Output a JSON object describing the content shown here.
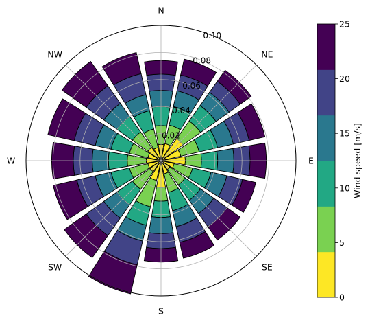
{
  "chart_data": {
    "type": "bar",
    "subtype": "windrose",
    "projection": "polar",
    "title": "",
    "direction_labels": [
      "N",
      "NE",
      "E",
      "SE",
      "S",
      "SW",
      "W",
      "NW"
    ],
    "directions_deg": [
      0,
      22.5,
      45,
      67.5,
      90,
      112.5,
      135,
      157.5,
      180,
      202.5,
      225,
      247.5,
      270,
      292.5,
      315,
      337.5
    ],
    "radial_ticks": [
      "0.02",
      "0.04",
      "0.06",
      "0.08",
      "0.10"
    ],
    "radial_tick_values": [
      0.02,
      0.04,
      0.06,
      0.08,
      0.1
    ],
    "rlim": [
      0,
      0.1
    ],
    "grid": true,
    "stacked": true,
    "series": [
      {
        "name": "0–5",
        "color": "#fde725",
        "values": [
          0.012,
          0.013,
          0.02,
          0.015,
          0.018,
          0.01,
          0.008,
          0.01,
          0.02,
          0.015,
          0.01,
          0.01,
          0.011,
          0.01,
          0.012,
          0.01
        ]
      },
      {
        "name": "5–10",
        "color": "#7ad151",
        "values": [
          0.014,
          0.014,
          0.016,
          0.014,
          0.012,
          0.014,
          0.014,
          0.014,
          0.01,
          0.02,
          0.016,
          0.014,
          0.014,
          0.014,
          0.014,
          0.014
        ]
      },
      {
        "name": "10–15",
        "color": "#22a884",
        "values": [
          0.014,
          0.014,
          0.014,
          0.014,
          0.012,
          0.014,
          0.014,
          0.014,
          0.012,
          0.014,
          0.014,
          0.014,
          0.014,
          0.014,
          0.014,
          0.014
        ]
      },
      {
        "name": "15–20",
        "color": "#2a788e",
        "values": [
          0.012,
          0.012,
          0.012,
          0.012,
          0.012,
          0.012,
          0.012,
          0.012,
          0.012,
          0.012,
          0.012,
          0.012,
          0.012,
          0.012,
          0.012,
          0.012
        ]
      },
      {
        "name": "20–25",
        "color": "#414487",
        "values": [
          0.012,
          0.012,
          0.01,
          0.012,
          0.012,
          0.012,
          0.012,
          0.012,
          0.011,
          0.018,
          0.016,
          0.014,
          0.014,
          0.016,
          0.016,
          0.016
        ]
      },
      {
        "name": "25+",
        "color": "#440154",
        "values": [
          0.01,
          0.012,
          0.01,
          0.012,
          0.012,
          0.01,
          0.012,
          0.012,
          0.01,
          0.022,
          0.02,
          0.018,
          0.016,
          0.02,
          0.022,
          0.016
        ]
      }
    ],
    "colorbar": {
      "label": "Wind speed [m/s]",
      "ticks": [
        "0",
        "5",
        "10",
        "15",
        "20",
        "25"
      ],
      "tick_values": [
        0,
        5,
        10,
        15,
        20,
        25
      ],
      "range": [
        0,
        25
      ],
      "colors": [
        "#fde725",
        "#7ad151",
        "#22a884",
        "#2a788e",
        "#414487",
        "#440154"
      ]
    }
  }
}
